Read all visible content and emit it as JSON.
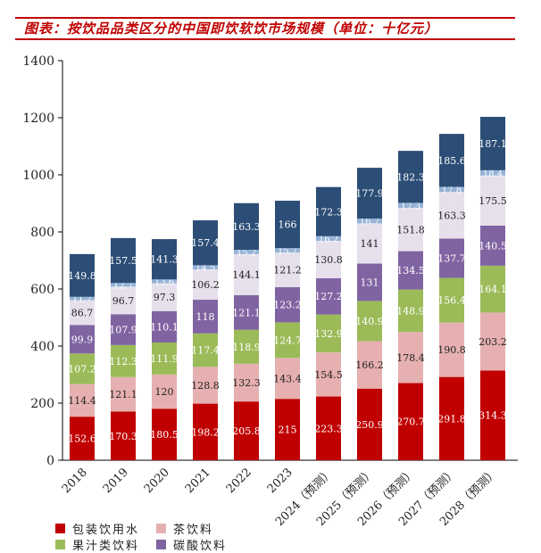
{
  "title": "图表：按饮品品类区分的中国即饮软饮市场规模（单位：十亿元）",
  "chart_data": {
    "type": "bar",
    "stacked": true,
    "title": "图表：按饮品品类区分的中国即饮软饮市场规模（单位：十亿元）",
    "categories": [
      "2018",
      "2019",
      "2020",
      "2021",
      "2022",
      "2023",
      "2024（预测）",
      "2025（预测）",
      "2026（预测）",
      "2027（预测）",
      "2028（预测）"
    ],
    "ylim": [
      0,
      1400
    ],
    "yticks": [
      0,
      200,
      400,
      600,
      800,
      1000,
      1200,
      1400
    ],
    "grid": false,
    "legend_position": "bottom",
    "series": [
      {
        "name": "包装饮用水",
        "color": "#c00000",
        "label_color": "#ffffff",
        "values": [
          152.6,
          170.3,
          180.5,
          198.2,
          205.8,
          215,
          223.3,
          250.9,
          270.7,
          291.8,
          314.3
        ]
      },
      {
        "name": "茶饮料",
        "color": "#e6b0b0",
        "label_color": "#222222",
        "values": [
          114.4,
          121.1,
          120,
          128.8,
          132.3,
          143.4,
          154.5,
          166.2,
          178.4,
          190.8,
          203.2
        ]
      },
      {
        "name": "果汁类饮料",
        "color": "#9bbb59",
        "label_color": "#ffffff",
        "values": [
          107.2,
          112.3,
          111.9,
          117.4,
          118.9,
          124.7,
          132.9,
          140.9,
          148.9,
          156.4,
          164.1
        ]
      },
      {
        "name": "碳酸饮料",
        "color": "#8064a2",
        "label_color": "#ffffff",
        "values": [
          99.9,
          107.9,
          110.1,
          118,
          121.1,
          123.2,
          127.2,
          131,
          134.5,
          137.7,
          140.5
        ]
      },
      {
        "color": "#e6e0ec",
        "label_color": "#222222",
        "values": [
          86.7,
          96.7,
          97.3,
          106.2,
          144.1,
          121.2,
          130.8,
          141,
          151.8,
          163.3,
          175.5
        ]
      },
      {
        "color": "#95b3d7",
        "label_color": "#ffffff",
        "values": [
          11.7,
          12.7,
          13.6,
          14.5,
          15.2,
          15.7,
          16.2,
          16.7,
          17.3,
          17.8,
          18.4
        ]
      },
      {
        "color": "#2c4d75",
        "label_color": "#ffffff",
        "values": [
          149.8,
          157.5,
          141.3,
          157.4,
          163.3,
          166,
          172.3,
          177.9,
          182.3,
          185.6,
          187.1
        ]
      }
    ]
  }
}
